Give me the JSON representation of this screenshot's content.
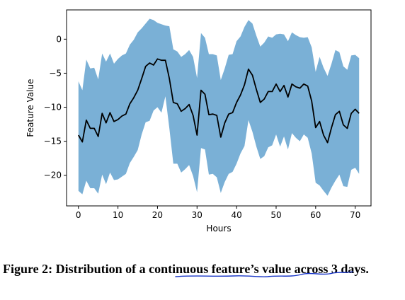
{
  "chart_data": {
    "type": "area",
    "xlabel": "Hours",
    "ylabel": "Feature Value",
    "xlim": [
      -3,
      74
    ],
    "ylim": [
      -24.5,
      4.3
    ],
    "xticks": [
      0,
      10,
      20,
      30,
      40,
      50,
      60,
      70
    ],
    "yticks": [
      0,
      -5,
      -10,
      -15,
      -20
    ],
    "x": [
      0,
      1,
      2,
      3,
      4,
      5,
      6,
      7,
      8,
      9,
      10,
      11,
      12,
      13,
      14,
      15,
      16,
      17,
      18,
      19,
      20,
      21,
      22,
      23,
      24,
      25,
      26,
      27,
      28,
      29,
      30,
      31,
      32,
      33,
      34,
      35,
      36,
      37,
      38,
      39,
      40,
      41,
      42,
      43,
      44,
      45,
      46,
      47,
      48,
      49,
      50,
      51,
      52,
      53,
      54,
      55,
      56,
      57,
      58,
      59,
      60,
      61,
      62,
      63,
      64,
      65,
      66,
      67,
      68,
      69,
      70,
      71
    ],
    "series": [
      {
        "type": "line",
        "color": "#000000",
        "values": [
          -14.1,
          -15.1,
          -11.9,
          -13.1,
          -13.1,
          -14.3,
          -10.9,
          -12.3,
          -10.8,
          -12.1,
          -11.8,
          -11.3,
          -11.0,
          -9.5,
          -8.6,
          -7.5,
          -5.8,
          -4.0,
          -3.5,
          -3.8,
          -2.9,
          -3.1,
          -3.1,
          -5.8,
          -9.3,
          -9.5,
          -10.6,
          -10.2,
          -9.6,
          -11.2,
          -14.1,
          -7.5,
          -8.1,
          -11.1,
          -11.0,
          -11.2,
          -14.4,
          -12.3,
          -11.0,
          -10.8,
          -9.3,
          -8.2,
          -6.7,
          -4.4,
          -5.3,
          -7.4,
          -9.3,
          -8.8,
          -7.7,
          -7.7,
          -6.6,
          -7.7,
          -6.8,
          -8.5,
          -6.6,
          -7.0,
          -7.2,
          -6.6,
          -6.9,
          -9.1,
          -13.0,
          -12.1,
          -14.1,
          -15.2,
          -13.0,
          -11.1,
          -10.6,
          -12.6,
          -13.1,
          -10.9,
          -10.3,
          -10.9
        ]
      },
      {
        "type": "band",
        "color": "#7ab0d6",
        "upper": [
          -6.2,
          -7.5,
          -3.0,
          -4.3,
          -4.2,
          -5.9,
          -2.1,
          -3.3,
          -2.1,
          -3.6,
          -2.9,
          -2.4,
          -2.1,
          -0.8,
          -0.1,
          1.0,
          1.6,
          2.3,
          3.0,
          2.8,
          2.4,
          2.2,
          2.0,
          1.9,
          -1.5,
          -1.8,
          -2.6,
          -2.2,
          -1.6,
          -2.6,
          -5.7,
          0.9,
          0.2,
          -2.2,
          -2.2,
          -2.4,
          -6.0,
          -4.3,
          -2.3,
          -2.2,
          -0.3,
          0.4,
          1.8,
          2.8,
          2.3,
          0.5,
          -1.1,
          -0.5,
          0.4,
          0.2,
          0.7,
          0.8,
          0.7,
          -0.3,
          1.0,
          0.6,
          0.3,
          0.2,
          0.3,
          -1.2,
          -4.8,
          -2.6,
          -4.2,
          -5.4,
          -3.6,
          -1.6,
          -1.9,
          -4.0,
          -4.5,
          -2.4,
          -2.3,
          -2.8
        ],
        "lower": [
          -22.3,
          -22.8,
          -20.8,
          -21.9,
          -21.9,
          -22.7,
          -19.9,
          -21.3,
          -19.6,
          -20.7,
          -20.6,
          -20.2,
          -19.8,
          -18.2,
          -17.3,
          -16.3,
          -14.0,
          -12.2,
          -12.0,
          -10.5,
          -10.0,
          -10.8,
          -8.4,
          -13.1,
          -18.3,
          -18.3,
          -19.6,
          -19.1,
          -18.5,
          -20.1,
          -22.5,
          -16.0,
          -16.2,
          -19.9,
          -19.8,
          -20.3,
          -22.6,
          -21.0,
          -19.8,
          -19.5,
          -18.3,
          -16.8,
          -15.7,
          -11.9,
          -13.6,
          -15.8,
          -17.6,
          -17.2,
          -15.9,
          -15.6,
          -14.0,
          -15.8,
          -14.3,
          -16.2,
          -13.8,
          -14.5,
          -15.0,
          -14.0,
          -14.5,
          -16.8,
          -21.1,
          -21.5,
          -22.3,
          -23.0,
          -21.8,
          -20.8,
          -19.9,
          -21.6,
          -21.7,
          -19.2,
          -18.9,
          -19.8
        ]
      }
    ]
  },
  "caption": {
    "text": "Figure 2: Distribution of a continuous feature’s value across 3 days."
  }
}
